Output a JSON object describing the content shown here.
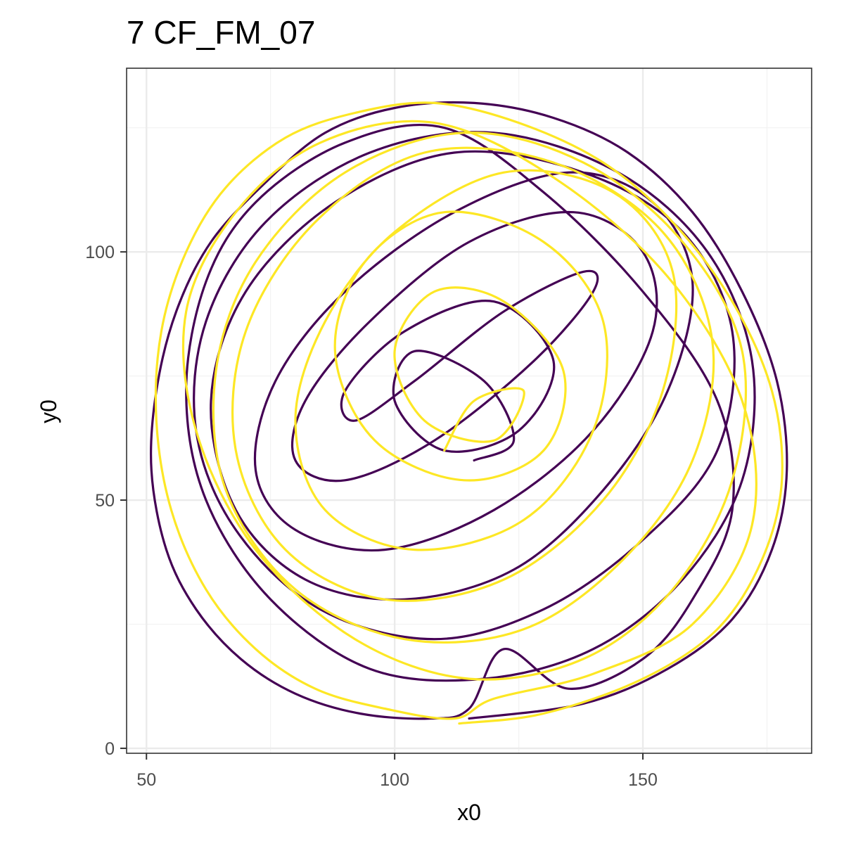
{
  "chart_data": {
    "type": "line",
    "title": "7 CF_FM_07",
    "xlabel": "x0",
    "ylabel": "y0",
    "xlim": [
      46,
      184
    ],
    "ylim": [
      -1,
      137
    ],
    "x_ticks": [
      50,
      100,
      150
    ],
    "y_ticks": [
      0,
      50,
      100
    ],
    "x_tick_labels": [
      "50",
      "100",
      "150"
    ],
    "y_tick_labels": [
      "0",
      "50",
      "100"
    ],
    "grid": true,
    "legend": "none",
    "arena": {
      "center_x": 116.5,
      "center_y": 70,
      "radius": 63
    },
    "series": [
      {
        "color": "#440154",
        "x": [
          115,
          138,
          155,
          168,
          176,
          179,
          177,
          170,
          160,
          147,
          132,
          116,
          100,
          86,
          74,
          63,
          56,
          52,
          51,
          54,
          60,
          69,
          80,
          93,
          107,
          115,
          122,
          135,
          150,
          160,
          168,
          165,
          150,
          130,
          110,
          90,
          72,
          62,
          58,
          62,
          75,
          95,
          118,
          140,
          158,
          170,
          172,
          163,
          145,
          120,
          95,
          74,
          62,
          60,
          68,
          85,
          108,
          130,
          150,
          165,
          168,
          158,
          138,
          112,
          88,
          70,
          63,
          68,
          82,
          102,
          124,
          142,
          155,
          160,
          152,
          135,
          112,
          90,
          76,
          72,
          80,
          98,
          120,
          140,
          152,
          150,
          136,
          115,
          95,
          82,
          80,
          90,
          108,
          128,
          140,
          138,
          122,
          104,
          92,
          90,
          102,
          120,
          132,
          125,
          110,
          100,
          104,
          118,
          124,
          116
        ],
        "y": [
          6,
          9,
          16,
          26,
          40,
          56,
          74,
          92,
          108,
          120,
          127,
          130,
          129,
          124,
          114,
          102,
          88,
          72,
          56,
          40,
          28,
          18,
          11,
          7,
          6,
          8,
          20,
          12,
          18,
          30,
          48,
          70,
          92,
          112,
          125,
          122,
          110,
          94,
          72,
          50,
          30,
          16,
          14,
          20,
          34,
          54,
          78,
          100,
          116,
          124,
          120,
          106,
          86,
          64,
          44,
          28,
          22,
          28,
          42,
          60,
          84,
          104,
          116,
          120,
          110,
          92,
          70,
          48,
          34,
          30,
          36,
          52,
          72,
          94,
          110,
          116,
          108,
          92,
          74,
          56,
          44,
          40,
          48,
          64,
          84,
          100,
          108,
          102,
          86,
          70,
          58,
          54,
          62,
          78,
          92,
          96,
          88,
          74,
          66,
          72,
          84,
          90,
          78,
          64,
          60,
          70,
          80,
          74,
          62,
          58
        ]
      },
      {
        "color": "#fde725",
        "x": [
          113,
          130,
          150,
          165,
          174,
          178,
          176,
          168,
          156,
          142,
          125,
          108,
          92,
          78,
          66,
          58,
          53,
          52,
          55,
          62,
          72,
          84,
          98,
          112,
          120,
          140,
          160,
          172,
          170,
          155,
          132,
          108,
          85,
          68,
          58,
          60,
          72,
          92,
          115,
          138,
          156,
          168,
          170,
          158,
          138,
          114,
          90,
          72,
          64,
          66,
          80,
          102,
          126,
          146,
          160,
          164,
          154,
          132,
          106,
          84,
          70,
          68,
          78,
          98,
          122,
          142,
          154,
          156,
          144,
          122,
          100,
          86,
          80,
          86,
          104,
          126,
          140,
          142,
          130,
          110,
          94,
          88,
          96,
          114,
          130,
          134,
          122,
          108,
          100,
          106,
          120,
          126,
          116,
          110
        ],
        "y": [
          5,
          7,
          14,
          24,
          38,
          54,
          72,
          90,
          106,
          118,
          126,
          130,
          128,
          123,
          113,
          100,
          84,
          66,
          48,
          32,
          20,
          12,
          8,
          6,
          10,
          15,
          25,
          45,
          70,
          95,
          115,
          126,
          122,
          108,
          88,
          64,
          40,
          22,
          14,
          18,
          32,
          54,
          80,
          102,
          118,
          124,
          116,
          98,
          76,
          52,
          32,
          22,
          24,
          38,
          58,
          82,
          104,
          118,
          120,
          106,
          84,
          60,
          40,
          30,
          34,
          50,
          72,
          96,
          112,
          116,
          104,
          86,
          66,
          48,
          40,
          46,
          64,
          86,
          102,
          108,
          98,
          80,
          62,
          54,
          60,
          76,
          90,
          92,
          80,
          66,
          62,
          72,
          70,
          60
        ]
      }
    ]
  }
}
